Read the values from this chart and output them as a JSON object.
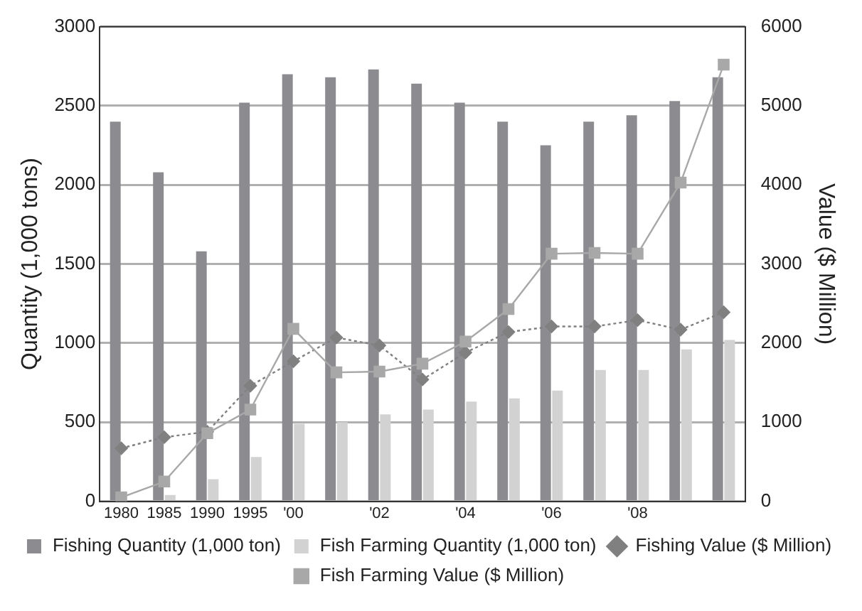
{
  "chart_data": {
    "type": "bar",
    "ylabel": "Quantity (1,000 tons)",
    "y2label": "Value ($ Million)",
    "categories": [
      "1980",
      "1985",
      "1990",
      "1995",
      "'00",
      null,
      "'02",
      null,
      "'04",
      null,
      "'06",
      null,
      "'08",
      null,
      null
    ],
    "series": [
      {
        "name": "Fishing Quantity (1,000 ton)",
        "color": "#8c8c90",
        "values": [
          2400,
          2080,
          1580,
          2520,
          2700,
          2680,
          2730,
          2640,
          2520,
          2400,
          2250,
          2400,
          2440,
          2530,
          2680
        ]
      },
      {
        "name": "Fish Farming Quantity (1,000 ton)",
        "color": "#d2d2d2",
        "values": [
          0,
          40,
          140,
          280,
          490,
          500,
          550,
          580,
          630,
          650,
          700,
          830,
          830,
          960,
          1020
        ]
      },
      {
        "name": "Fishing Value ($ Million)",
        "type": "line",
        "axis": "y2",
        "color": "#808080",
        "marker": "diamond",
        "line_style": "dotted",
        "values": [
          670,
          810,
          880,
          1460,
          1770,
          2070,
          1970,
          1540,
          1880,
          2140,
          2210,
          2210,
          2290,
          2170,
          2390
        ]
      },
      {
        "name": "Fish Farming Value ($ Million)",
        "type": "line",
        "axis": "y2",
        "color": "#a8a8a8",
        "marker": "square",
        "line_style": "solid",
        "values": [
          50,
          250,
          860,
          1160,
          2180,
          1630,
          1640,
          1740,
          2020,
          2430,
          3130,
          3140,
          3130,
          4030,
          5520
        ]
      }
    ],
    "ylim": [
      0,
      3000
    ],
    "yticks": [
      0,
      500,
      1000,
      1500,
      2000,
      2500,
      3000
    ],
    "y2lim": [
      0,
      6000
    ],
    "y2ticks": [
      0,
      1000,
      2000,
      3000,
      4000,
      5000,
      6000
    ],
    "grid": "y",
    "legend": "bottom"
  }
}
